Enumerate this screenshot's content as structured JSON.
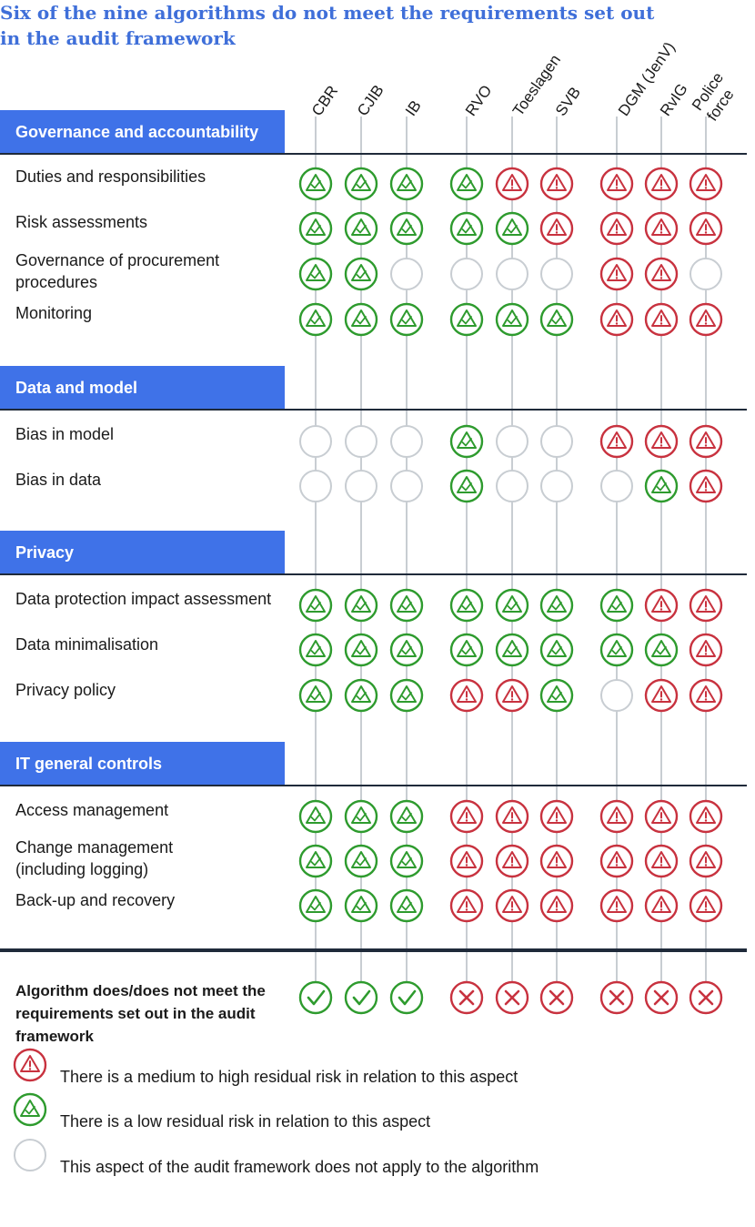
{
  "title": "Six of the nine algorithms do not meet the requirements set out in the audit framework",
  "colors": {
    "accent": "#3f72e8",
    "title": "#3f6fd9",
    "pass": "#2e9b2e",
    "fail": "#c8323f",
    "na": "#c8cdd2"
  },
  "columns": [
    "CBR",
    "CJIB",
    "IB",
    "RVO",
    "Toeslagen",
    "SVB",
    "DGM (JenV)",
    "RvIG",
    "Police force"
  ],
  "sections": [
    {
      "name": "Governance and accountability",
      "rows": [
        {
          "label": "Duties and responsibilities",
          "values": [
            "low",
            "low",
            "low",
            "low",
            "high",
            "high",
            "high",
            "high",
            "high"
          ]
        },
        {
          "label": "Risk assessments",
          "values": [
            "low",
            "low",
            "low",
            "low",
            "low",
            "high",
            "high",
            "high",
            "high"
          ]
        },
        {
          "label": "Governance of procurement procedures",
          "values": [
            "low",
            "low",
            "na",
            "na",
            "na",
            "na",
            "high",
            "high",
            "na"
          ]
        },
        {
          "label": "Monitoring",
          "values": [
            "low",
            "low",
            "low",
            "low",
            "low",
            "low",
            "high",
            "high",
            "high"
          ]
        }
      ]
    },
    {
      "name": "Data and model",
      "rows": [
        {
          "label": "Bias in model",
          "values": [
            "na",
            "na",
            "na",
            "low",
            "na",
            "na",
            "high",
            "high",
            "high"
          ]
        },
        {
          "label": "Bias in data",
          "values": [
            "na",
            "na",
            "na",
            "low",
            "na",
            "na",
            "na",
            "low",
            "high"
          ]
        }
      ]
    },
    {
      "name": "Privacy",
      "rows": [
        {
          "label": "Data protection impact assessment",
          "values": [
            "low",
            "low",
            "low",
            "low",
            "low",
            "low",
            "low",
            "high",
            "high"
          ]
        },
        {
          "label": "Data minimalisation",
          "values": [
            "low",
            "low",
            "low",
            "low",
            "low",
            "low",
            "low",
            "low",
            "high"
          ]
        },
        {
          "label": "Privacy policy",
          "values": [
            "low",
            "low",
            "low",
            "high",
            "high",
            "low",
            "na",
            "high",
            "high"
          ]
        }
      ]
    },
    {
      "name": "IT general controls",
      "rows": [
        {
          "label": "Access management",
          "values": [
            "low",
            "low",
            "low",
            "high",
            "high",
            "high",
            "high",
            "high",
            "high"
          ]
        },
        {
          "label": "Change management (including logging)",
          "values": [
            "low",
            "low",
            "low",
            "high",
            "high",
            "high",
            "high",
            "high",
            "high"
          ]
        },
        {
          "label": "Back-up and recovery",
          "values": [
            "low",
            "low",
            "low",
            "high",
            "high",
            "high",
            "high",
            "high",
            "high"
          ]
        }
      ]
    }
  ],
  "conclusion": {
    "label": "Algorithm does/does not meet the requirements set out in the audit framework",
    "values": [
      "meets",
      "meets",
      "meets",
      "fails",
      "fails",
      "fails",
      "fails",
      "fails",
      "fails"
    ]
  },
  "legend": [
    {
      "type": "high",
      "text": "There is a medium to high residual risk in relation to this aspect"
    },
    {
      "type": "low",
      "text": "There is a low residual risk in relation to this aspect"
    },
    {
      "type": "na",
      "text": "This aspect of the audit framework does not apply to the algorithm"
    }
  ]
}
